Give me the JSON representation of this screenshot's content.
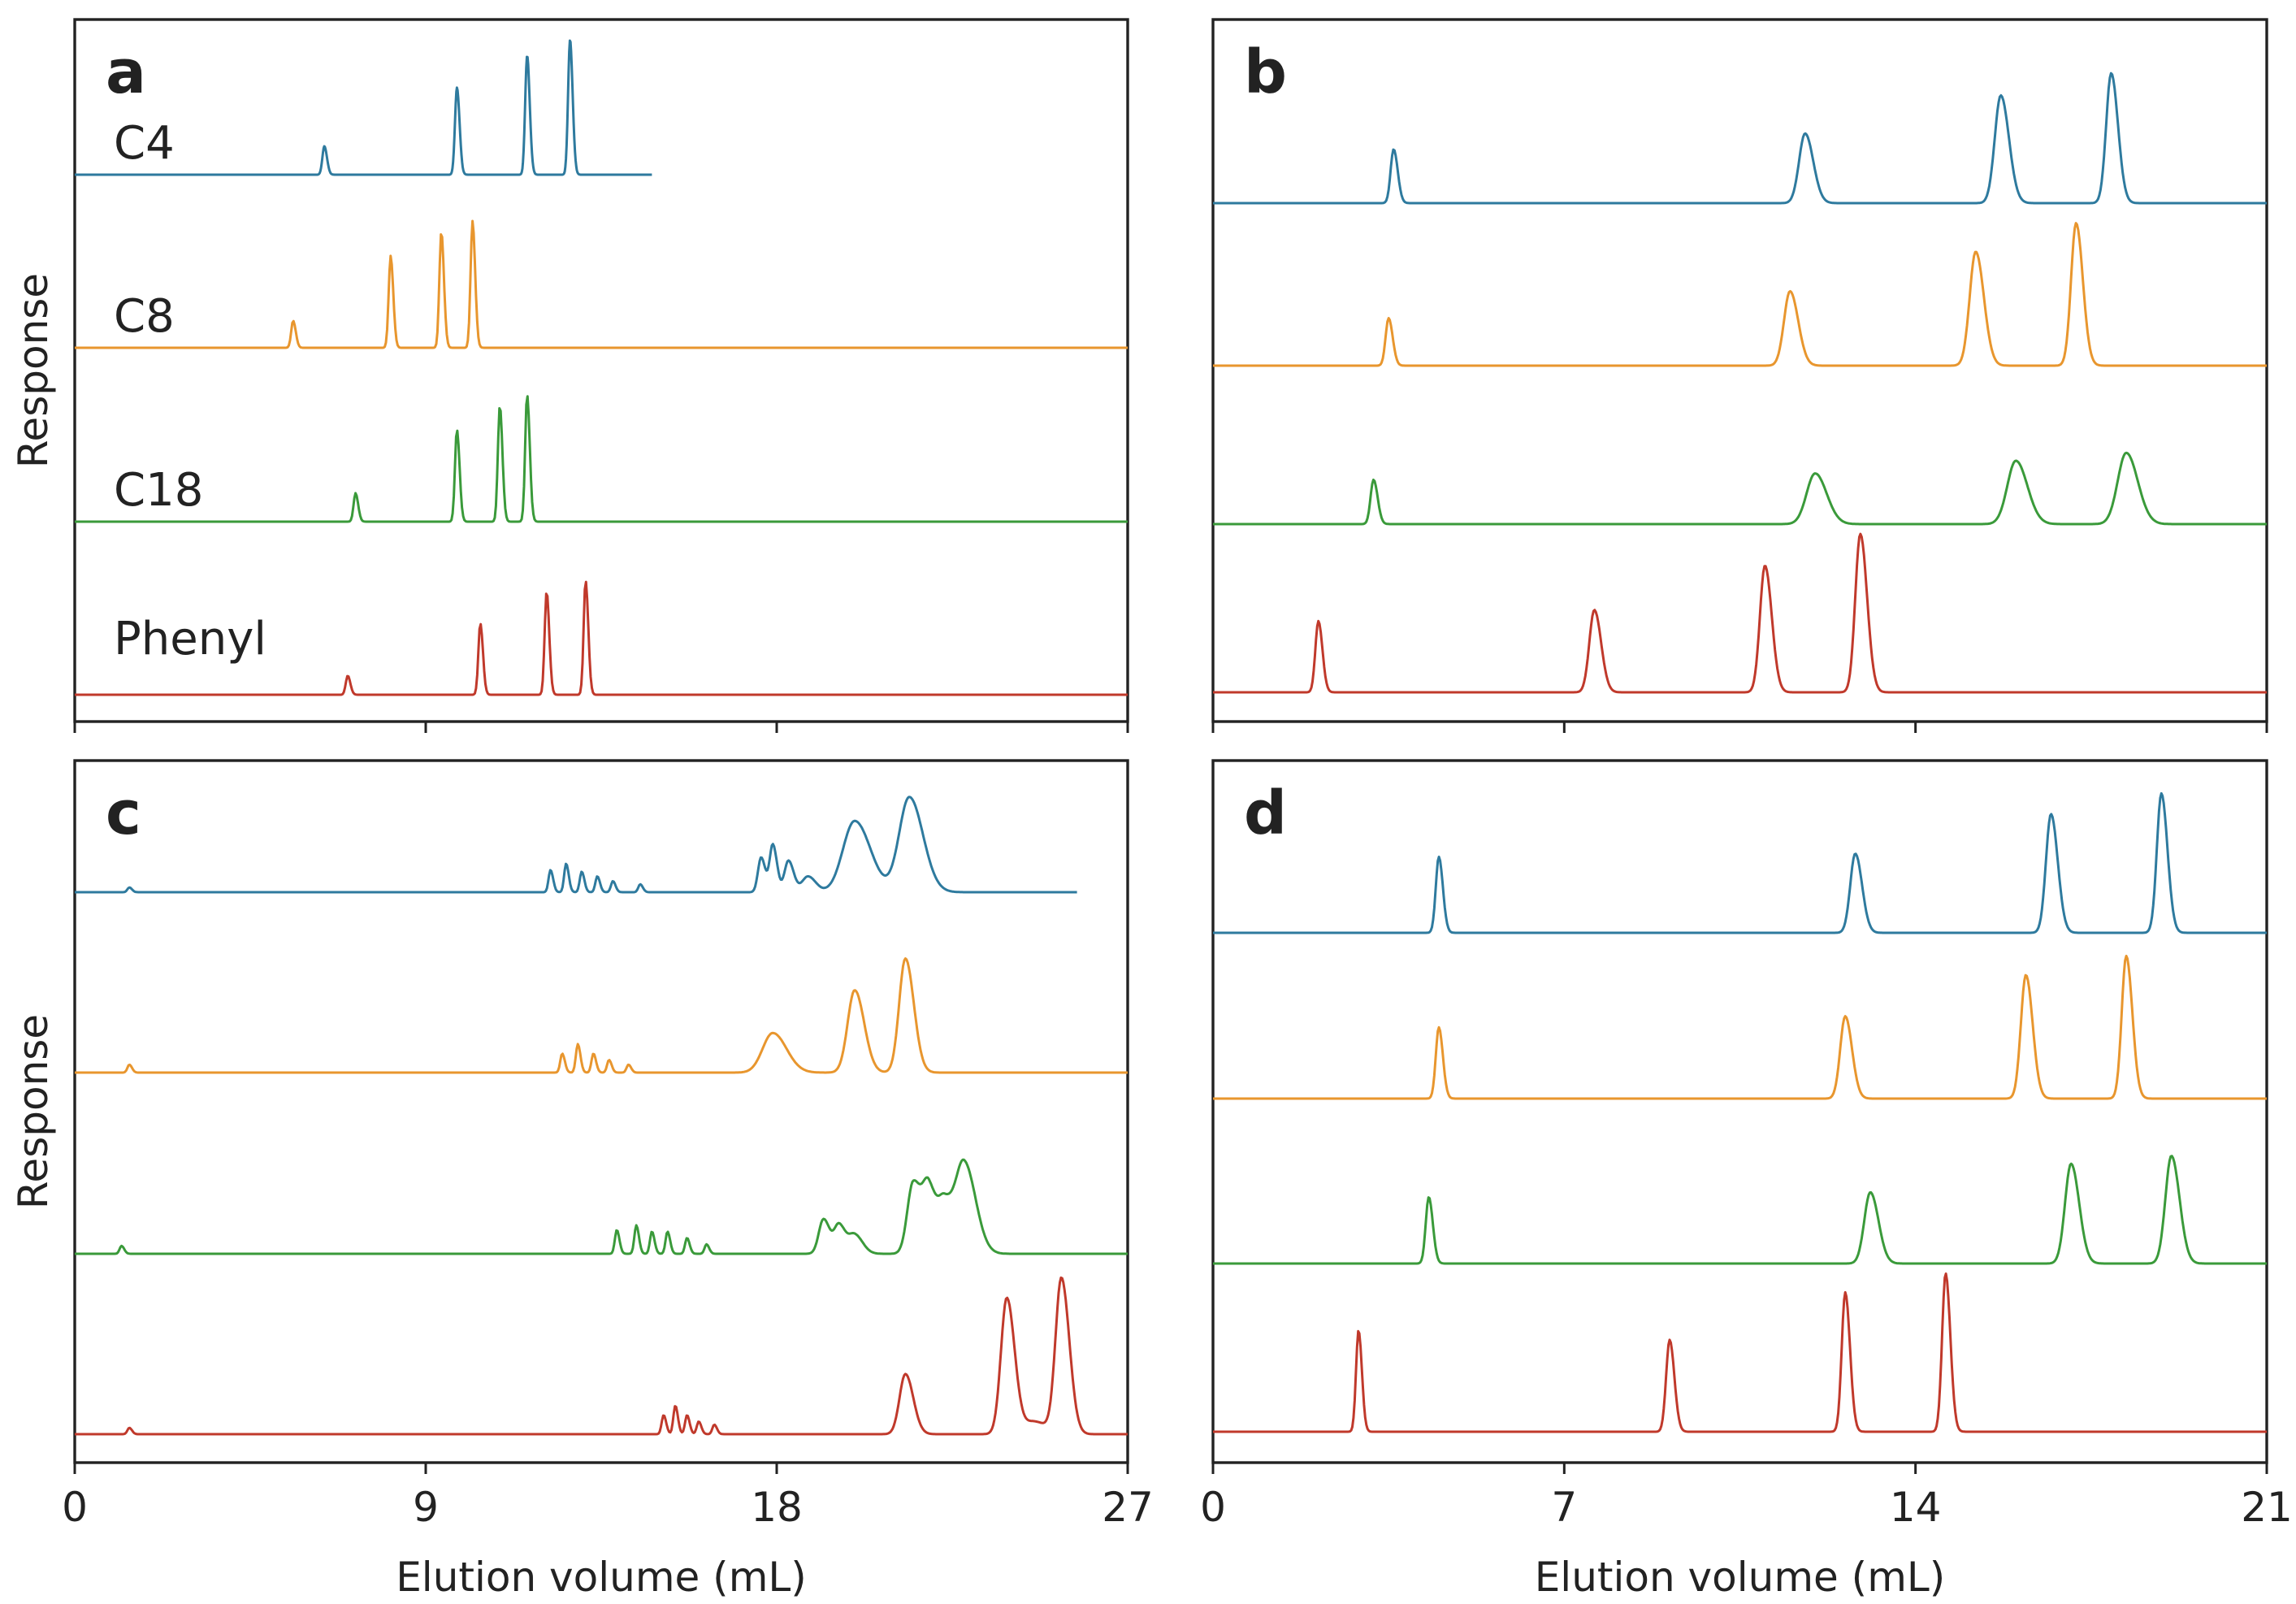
{
  "chart_data": [
    {
      "panel": "a",
      "type": "line",
      "xlabel": "Elution volume (mL)",
      "ylabel": "Response",
      "xlim": [
        0,
        27
      ],
      "xticks": [
        0,
        9,
        18,
        27
      ],
      "show_tick_labels": false,
      "series_labels_visible": true,
      "series": [
        {
          "name": "C4",
          "color": "#2e7a9e",
          "x_end": 14.8,
          "peaks": [
            [
              6.4,
              0.18,
              0.05
            ],
            [
              9.8,
              0.55,
              0.05
            ],
            [
              11.6,
              0.75,
              0.05
            ],
            [
              12.7,
              0.85,
              0.05
            ]
          ]
        },
        {
          "name": "C8",
          "color": "#e8962e",
          "x_end": 27,
          "peaks": [
            [
              5.6,
              0.17,
              0.05
            ],
            [
              8.1,
              0.58,
              0.05
            ],
            [
              9.4,
              0.73,
              0.05
            ],
            [
              10.2,
              0.8,
              0.05
            ]
          ]
        },
        {
          "name": "C18",
          "color": "#3a9a3a",
          "x_end": 27,
          "peaks": [
            [
              7.2,
              0.18,
              0.05
            ],
            [
              9.8,
              0.58,
              0.05
            ],
            [
              10.9,
              0.73,
              0.05
            ],
            [
              11.6,
              0.8,
              0.05
            ]
          ]
        },
        {
          "name": "Phenyl",
          "color": "#c0392b",
          "x_end": 27,
          "peaks": [
            [
              7.0,
              0.12,
              0.05
            ],
            [
              10.4,
              0.45,
              0.05
            ],
            [
              12.1,
              0.65,
              0.05
            ],
            [
              13.1,
              0.72,
              0.05
            ]
          ]
        }
      ]
    },
    {
      "panel": "b",
      "type": "line",
      "xlabel": "Elution volume (mL)",
      "ylabel": "Response",
      "xlim": [
        0,
        21
      ],
      "xticks": [
        0,
        7,
        14,
        21
      ],
      "show_tick_labels": false,
      "series_labels_visible": false,
      "series": [
        {
          "name": "C4",
          "color": "#2e7a9e",
          "x_end": 21,
          "peaks": [
            [
              3.6,
              0.34,
              0.06
            ],
            [
              11.8,
              0.44,
              0.12
            ],
            [
              15.7,
              0.68,
              0.12
            ],
            [
              17.9,
              0.82,
              0.1
            ]
          ]
        },
        {
          "name": "C8",
          "color": "#e8962e",
          "x_end": 21,
          "peaks": [
            [
              3.5,
              0.3,
              0.06
            ],
            [
              11.5,
              0.47,
              0.12
            ],
            [
              15.2,
              0.72,
              0.12
            ],
            [
              17.2,
              0.9,
              0.1
            ]
          ]
        },
        {
          "name": "C18",
          "color": "#3a9a3a",
          "x_end": 21,
          "peaks": [
            [
              3.2,
              0.28,
              0.06
            ],
            [
              12.0,
              0.32,
              0.17
            ],
            [
              16.0,
              0.4,
              0.17
            ],
            [
              18.2,
              0.45,
              0.17
            ]
          ]
        },
        {
          "name": "Phenyl",
          "color": "#c0392b",
          "x_end": 21,
          "peaks": [
            [
              2.1,
              0.45,
              0.06
            ],
            [
              7.6,
              0.52,
              0.1
            ],
            [
              11.0,
              0.8,
              0.1
            ],
            [
              12.9,
              1.0,
              0.1
            ]
          ]
        }
      ]
    },
    {
      "panel": "c",
      "type": "line",
      "xlabel": "Elution volume (mL)",
      "ylabel": "Response",
      "xlim": [
        0,
        27
      ],
      "xticks": [
        0,
        9,
        18,
        27
      ],
      "show_tick_labels": true,
      "series_labels_visible": false,
      "series": [
        {
          "name": "C4",
          "color": "#2e7a9e",
          "x_end": 25.7,
          "peaks": [
            [
              1.4,
              0.03,
              0.05
            ],
            [
              12.2,
              0.14,
              0.05
            ],
            [
              12.6,
              0.18,
              0.05
            ],
            [
              13.0,
              0.13,
              0.05
            ],
            [
              13.4,
              0.1,
              0.05
            ],
            [
              13.8,
              0.07,
              0.05
            ],
            [
              14.5,
              0.05,
              0.05
            ],
            [
              17.6,
              0.22,
              0.08
            ],
            [
              17.9,
              0.3,
              0.08
            ],
            [
              18.3,
              0.2,
              0.1
            ],
            [
              18.8,
              0.1,
              0.15
            ],
            [
              20.0,
              0.45,
              0.3
            ],
            [
              21.4,
              0.6,
              0.26
            ]
          ]
        },
        {
          "name": "C8",
          "color": "#e8962e",
          "x_end": 27,
          "peaks": [
            [
              1.4,
              0.05,
              0.05
            ],
            [
              12.5,
              0.12,
              0.05
            ],
            [
              12.9,
              0.18,
              0.05
            ],
            [
              13.3,
              0.12,
              0.05
            ],
            [
              13.7,
              0.08,
              0.05
            ],
            [
              14.2,
              0.05,
              0.05
            ],
            [
              17.9,
              0.25,
              0.26
            ],
            [
              20.0,
              0.52,
              0.18
            ],
            [
              21.3,
              0.72,
              0.16
            ]
          ]
        },
        {
          "name": "C18",
          "color": "#3a9a3a",
          "x_end": 27,
          "peaks": [
            [
              1.2,
              0.05,
              0.05
            ],
            [
              13.9,
              0.15,
              0.05
            ],
            [
              14.4,
              0.18,
              0.05
            ],
            [
              14.8,
              0.14,
              0.05
            ],
            [
              15.2,
              0.14,
              0.05
            ],
            [
              15.7,
              0.1,
              0.05
            ],
            [
              16.2,
              0.06,
              0.05
            ],
            [
              19.2,
              0.22,
              0.12
            ],
            [
              19.6,
              0.18,
              0.12
            ],
            [
              20.0,
              0.12,
              0.15
            ],
            [
              21.5,
              0.45,
              0.15
            ],
            [
              21.9,
              0.4,
              0.15
            ],
            [
              22.3,
              0.28,
              0.15
            ],
            [
              22.8,
              0.58,
              0.22
            ]
          ]
        },
        {
          "name": "Phenyl",
          "color": "#c0392b",
          "x_end": 27,
          "peaks": [
            [
              1.4,
              0.04,
              0.05
            ],
            [
              15.1,
              0.12,
              0.05
            ],
            [
              15.4,
              0.18,
              0.05
            ],
            [
              15.7,
              0.12,
              0.05
            ],
            [
              16.0,
              0.08,
              0.05
            ],
            [
              16.4,
              0.06,
              0.05
            ],
            [
              21.3,
              0.38,
              0.15
            ],
            [
              23.9,
              0.86,
              0.15
            ],
            [
              24.6,
              0.08,
              0.25
            ],
            [
              25.3,
              0.98,
              0.15
            ]
          ]
        }
      ]
    },
    {
      "panel": "d",
      "type": "line",
      "xlabel": "Elution volume (mL)",
      "ylabel": "Response",
      "xlim": [
        0,
        21
      ],
      "xticks": [
        0,
        7,
        14,
        21
      ],
      "show_tick_labels": true,
      "series_labels_visible": false,
      "series": [
        {
          "name": "C4",
          "color": "#2e7a9e",
          "x_end": 21,
          "peaks": [
            [
              4.5,
              0.48,
              0.06
            ],
            [
              12.8,
              0.5,
              0.1
            ],
            [
              16.7,
              0.75,
              0.1
            ],
            [
              18.9,
              0.88,
              0.09
            ]
          ]
        },
        {
          "name": "C8",
          "color": "#e8962e",
          "x_end": 21,
          "peaks": [
            [
              4.5,
              0.45,
              0.06
            ],
            [
              12.6,
              0.52,
              0.1
            ],
            [
              16.2,
              0.78,
              0.1
            ],
            [
              18.2,
              0.9,
              0.09
            ]
          ]
        },
        {
          "name": "C18",
          "color": "#3a9a3a",
          "x_end": 21,
          "peaks": [
            [
              4.3,
              0.42,
              0.06
            ],
            [
              13.1,
              0.45,
              0.12
            ],
            [
              17.1,
              0.63,
              0.12
            ],
            [
              19.1,
              0.68,
              0.12
            ]
          ]
        },
        {
          "name": "Phenyl",
          "color": "#c0392b",
          "x_end": 21,
          "peaks": [
            [
              2.9,
              0.64,
              0.05
            ],
            [
              9.1,
              0.58,
              0.07
            ],
            [
              12.6,
              0.88,
              0.07
            ],
            [
              14.6,
              1.0,
              0.07
            ]
          ]
        }
      ]
    }
  ]
}
